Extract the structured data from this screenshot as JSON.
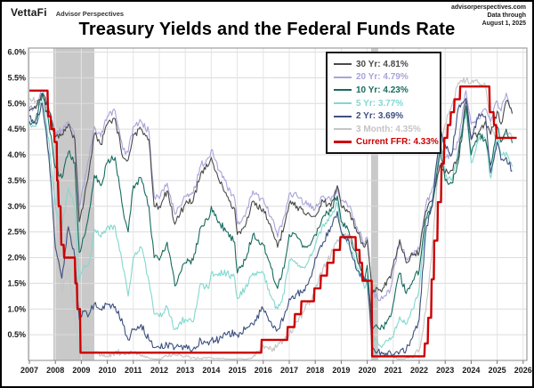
{
  "header": {
    "brand": "VettaFi",
    "brand_sub": "Advisor Perspectives",
    "credit_line1": "advisorperspectives.com",
    "credit_line2": "Data through",
    "credit_line3": "August 1, 2025"
  },
  "title": "Treasury Yields and the Federal Funds Rate",
  "chart_data": {
    "type": "line",
    "title": "Treasury Yields and the Federal Funds Rate",
    "xlabel": "",
    "ylabel": "",
    "x_range": [
      2007,
      2026
    ],
    "y_range": [
      0,
      6
    ],
    "grid": true,
    "legend_position": "top-right-inside",
    "y_ticks": [
      "0.5%",
      "1.0%",
      "1.5%",
      "2.0%",
      "2.5%",
      "3.0%",
      "3.5%",
      "4.0%",
      "4.5%",
      "5.0%",
      "5.5%",
      "6.0%"
    ],
    "x_ticks": [
      "2007",
      "2008",
      "2009",
      "2010",
      "2011",
      "2012",
      "2013",
      "2014",
      "2015",
      "2016",
      "2017",
      "2018",
      "2019",
      "2020",
      "2021",
      "2022",
      "2023",
      "2024",
      "2025",
      "2026"
    ],
    "recession_bands": [
      [
        2007.92,
        2009.5
      ],
      [
        2020.15,
        2020.42
      ]
    ],
    "colors": {
      "recession": "#c9c9c9",
      "grid": "#dcdcdc",
      "plot_border": "#9e9e9e",
      "background": "#ffffff",
      "frame": "#000000"
    },
    "x": [
      2007.0,
      2007.25,
      2007.5,
      2007.75,
      2008.0,
      2008.25,
      2008.5,
      2008.75,
      2008.92,
      2009.1,
      2009.3,
      2009.5,
      2009.75,
      2010.0,
      2010.3,
      2010.6,
      2010.8,
      2011.0,
      2011.3,
      2011.6,
      2011.8,
      2012.0,
      2012.3,
      2012.6,
      2012.8,
      2013.0,
      2013.3,
      2013.6,
      2013.9,
      2014.0,
      2014.3,
      2014.6,
      2014.9,
      2015.0,
      2015.3,
      2015.6,
      2015.9,
      2016.0,
      2016.3,
      2016.55,
      2016.8,
      2017.0,
      2017.3,
      2017.6,
      2017.9,
      2018.0,
      2018.3,
      2018.6,
      2018.85,
      2019.0,
      2019.3,
      2019.6,
      2019.9,
      2020.0,
      2020.2,
      2020.4,
      2020.6,
      2020.9,
      2021.0,
      2021.25,
      2021.5,
      2021.75,
      2022.0,
      2022.25,
      2022.5,
      2022.8,
      2023.0,
      2023.25,
      2023.5,
      2023.8,
      2024.0,
      2024.3,
      2024.55,
      2024.75,
      2025.0,
      2025.15,
      2025.35,
      2025.58
    ],
    "series": [
      {
        "name": "30 Yr",
        "current": "4.81%",
        "color": "#4a4a4a",
        "values": [
          4.85,
          4.9,
          5.2,
          4.85,
          4.35,
          4.4,
          4.6,
          4.3,
          2.7,
          3.1,
          3.7,
          4.4,
          4.2,
          4.6,
          4.7,
          3.95,
          3.9,
          4.4,
          4.5,
          4.3,
          3.0,
          3.0,
          3.3,
          2.65,
          2.85,
          3.05,
          3.1,
          3.65,
          3.8,
          3.95,
          3.5,
          3.2,
          2.95,
          2.45,
          2.6,
          3.1,
          2.95,
          2.95,
          2.6,
          2.2,
          2.6,
          3.05,
          3.0,
          2.85,
          2.8,
          2.8,
          3.1,
          3.0,
          3.4,
          3.0,
          2.9,
          2.5,
          2.2,
          2.35,
          1.3,
          1.4,
          1.4,
          1.6,
          1.85,
          2.35,
          1.9,
          2.05,
          2.1,
          2.9,
          3.1,
          3.8,
          3.65,
          3.7,
          3.95,
          5.05,
          4.3,
          4.45,
          4.65,
          4.4,
          4.85,
          4.6,
          5.05,
          4.81
        ]
      },
      {
        "name": "20 Yr",
        "current": "4.79%",
        "color": "#a8a4d8",
        "values": [
          4.9,
          4.95,
          5.25,
          4.9,
          4.45,
          4.5,
          4.65,
          4.35,
          3.0,
          3.4,
          3.95,
          4.55,
          4.35,
          4.75,
          4.85,
          4.1,
          4.05,
          4.55,
          4.65,
          4.45,
          3.2,
          3.15,
          3.45,
          2.85,
          3.0,
          3.2,
          3.25,
          3.8,
          3.95,
          4.1,
          3.7,
          3.4,
          3.15,
          2.65,
          2.8,
          3.3,
          3.15,
          3.15,
          2.8,
          2.4,
          2.8,
          3.25,
          3.2,
          3.05,
          3.0,
          2.95,
          3.2,
          3.1,
          3.35,
          3.1,
          3.0,
          2.6,
          2.25,
          2.4,
          1.35,
          1.2,
          1.2,
          1.4,
          1.7,
          2.3,
          2.0,
          2.1,
          2.15,
          3.0,
          3.35,
          4.1,
          3.95,
          4.0,
          4.25,
          5.25,
          4.6,
          4.7,
          4.9,
          4.65,
          5.05,
          4.85,
          5.2,
          4.79
        ]
      },
      {
        "name": "10 Yr",
        "current": "4.23%",
        "color": "#176b5d",
        "values": [
          4.65,
          4.7,
          5.2,
          4.6,
          3.75,
          3.55,
          4.05,
          3.85,
          2.1,
          2.4,
          2.9,
          3.6,
          3.4,
          3.85,
          3.95,
          2.95,
          2.5,
          3.4,
          3.55,
          3.0,
          2.0,
          1.95,
          2.3,
          1.45,
          1.7,
          1.9,
          1.95,
          2.6,
          2.75,
          3.0,
          2.7,
          2.5,
          2.3,
          1.7,
          1.95,
          2.45,
          2.25,
          2.25,
          1.8,
          1.4,
          1.8,
          2.45,
          2.4,
          2.2,
          2.35,
          2.45,
          2.8,
          2.9,
          3.2,
          2.7,
          2.5,
          2.0,
          1.55,
          1.85,
          0.6,
          0.65,
          0.65,
          0.85,
          1.1,
          1.7,
          1.3,
          1.55,
          1.75,
          2.75,
          3.0,
          4.1,
          3.5,
          3.45,
          3.85,
          4.95,
          4.0,
          4.4,
          4.3,
          3.8,
          4.55,
          4.25,
          4.5,
          4.23
        ]
      },
      {
        "name": "5 Yr",
        "current": "3.77%",
        "color": "#82d8d0",
        "values": [
          4.6,
          4.55,
          5.05,
          4.3,
          3.0,
          2.6,
          3.35,
          3.0,
          1.55,
          1.85,
          1.9,
          2.55,
          2.4,
          2.6,
          2.6,
          1.8,
          1.25,
          2.0,
          2.2,
          1.55,
          0.9,
          0.85,
          1.05,
          0.6,
          0.75,
          0.8,
          0.75,
          1.5,
          1.4,
          1.7,
          1.7,
          1.7,
          1.6,
          1.2,
          1.4,
          1.7,
          1.7,
          1.7,
          1.25,
          1.0,
          1.3,
          1.95,
          1.9,
          1.8,
          2.1,
          2.25,
          2.65,
          2.8,
          3.05,
          2.5,
          2.25,
          1.8,
          1.4,
          1.65,
          0.4,
          0.35,
          0.3,
          0.4,
          0.45,
          0.85,
          0.7,
          1.0,
          1.4,
          2.7,
          3.05,
          4.3,
          3.6,
          3.5,
          4.1,
          4.9,
          3.85,
          4.35,
          4.3,
          3.55,
          4.4,
          4.0,
          4.05,
          3.77
        ]
      },
      {
        "name": "2 Yr",
        "current": "3.69%",
        "color": "#3e5080",
        "values": [
          4.75,
          4.6,
          5.0,
          4.0,
          2.2,
          1.6,
          2.6,
          2.0,
          0.8,
          0.95,
          0.9,
          1.1,
          1.0,
          1.1,
          1.05,
          0.7,
          0.4,
          0.6,
          0.7,
          0.4,
          0.25,
          0.25,
          0.3,
          0.25,
          0.27,
          0.25,
          0.22,
          0.4,
          0.3,
          0.4,
          0.4,
          0.5,
          0.55,
          0.5,
          0.6,
          0.7,
          0.95,
          1.0,
          0.75,
          0.6,
          0.85,
          1.2,
          1.3,
          1.35,
          1.75,
          2.0,
          2.3,
          2.6,
          2.9,
          2.5,
          2.3,
          1.75,
          1.55,
          1.55,
          0.25,
          0.17,
          0.13,
          0.15,
          0.12,
          0.16,
          0.2,
          0.45,
          0.8,
          2.5,
          3.0,
          4.5,
          4.2,
          4.0,
          4.9,
          5.1,
          4.3,
          4.8,
          4.75,
          3.65,
          4.25,
          3.9,
          3.95,
          3.69
        ]
      },
      {
        "name": "3 Month",
        "current": "4.35%",
        "color": "#c4c4c4",
        "values": [
          5.1,
          5.05,
          4.95,
          3.9,
          3.1,
          1.35,
          1.8,
          0.9,
          0.05,
          0.25,
          0.15,
          0.18,
          0.1,
          0.08,
          0.15,
          0.15,
          0.13,
          0.14,
          0.08,
          0.05,
          0.02,
          0.03,
          0.08,
          0.1,
          0.1,
          0.08,
          0.06,
          0.04,
          0.06,
          0.05,
          0.03,
          0.03,
          0.02,
          0.03,
          0.02,
          0.07,
          0.2,
          0.3,
          0.23,
          0.28,
          0.4,
          0.5,
          0.75,
          1.0,
          1.25,
          1.4,
          1.8,
          2.05,
          2.35,
          2.4,
          2.4,
          2.1,
          1.55,
          1.55,
          0.1,
          0.14,
          0.11,
          0.08,
          0.07,
          0.02,
          0.05,
          0.05,
          0.2,
          0.95,
          2.2,
          4.1,
          4.6,
          4.95,
          5.4,
          5.45,
          5.4,
          5.4,
          5.35,
          4.6,
          4.3,
          4.3,
          4.4,
          4.35
        ]
      }
    ],
    "ffr": {
      "name": "Current FFR",
      "current": "4.33%",
      "color": "#cc0000",
      "points": [
        [
          2007.0,
          5.25
        ],
        [
          2007.7,
          5.25
        ],
        [
          2007.72,
          4.75
        ],
        [
          2007.82,
          4.75
        ],
        [
          2007.84,
          4.5
        ],
        [
          2007.95,
          4.5
        ],
        [
          2007.97,
          4.25
        ],
        [
          2008.05,
          4.25
        ],
        [
          2008.07,
          3.5
        ],
        [
          2008.1,
          3.5
        ],
        [
          2008.13,
          3.0
        ],
        [
          2008.2,
          3.0
        ],
        [
          2008.23,
          2.25
        ],
        [
          2008.32,
          2.25
        ],
        [
          2008.34,
          2.0
        ],
        [
          2008.75,
          2.0
        ],
        [
          2008.77,
          1.5
        ],
        [
          2008.83,
          1.5
        ],
        [
          2008.85,
          1.0
        ],
        [
          2008.95,
          1.0
        ],
        [
          2008.97,
          0.15
        ],
        [
          2015.92,
          0.15
        ],
        [
          2015.94,
          0.4
        ],
        [
          2016.92,
          0.4
        ],
        [
          2016.94,
          0.65
        ],
        [
          2017.2,
          0.65
        ],
        [
          2017.22,
          0.9
        ],
        [
          2017.45,
          0.9
        ],
        [
          2017.47,
          1.15
        ],
        [
          2017.95,
          1.15
        ],
        [
          2017.97,
          1.4
        ],
        [
          2018.2,
          1.4
        ],
        [
          2018.22,
          1.65
        ],
        [
          2018.45,
          1.65
        ],
        [
          2018.47,
          1.9
        ],
        [
          2018.7,
          1.9
        ],
        [
          2018.72,
          2.15
        ],
        [
          2018.95,
          2.15
        ],
        [
          2018.97,
          2.4
        ],
        [
          2019.55,
          2.4
        ],
        [
          2019.57,
          2.15
        ],
        [
          2019.7,
          2.15
        ],
        [
          2019.72,
          1.9
        ],
        [
          2019.8,
          1.9
        ],
        [
          2019.82,
          1.55
        ],
        [
          2020.17,
          1.55
        ],
        [
          2020.19,
          0.08
        ],
        [
          2022.2,
          0.08
        ],
        [
          2022.22,
          0.33
        ],
        [
          2022.33,
          0.33
        ],
        [
          2022.35,
          0.83
        ],
        [
          2022.46,
          0.83
        ],
        [
          2022.48,
          1.58
        ],
        [
          2022.56,
          1.58
        ],
        [
          2022.58,
          2.33
        ],
        [
          2022.7,
          2.33
        ],
        [
          2022.72,
          3.08
        ],
        [
          2022.84,
          3.08
        ],
        [
          2022.86,
          3.83
        ],
        [
          2022.95,
          3.83
        ],
        [
          2022.97,
          4.33
        ],
        [
          2023.08,
          4.33
        ],
        [
          2023.1,
          4.58
        ],
        [
          2023.2,
          4.58
        ],
        [
          2023.22,
          4.83
        ],
        [
          2023.34,
          4.83
        ],
        [
          2023.36,
          5.08
        ],
        [
          2023.56,
          5.08
        ],
        [
          2023.58,
          5.33
        ],
        [
          2024.7,
          5.33
        ],
        [
          2024.72,
          4.83
        ],
        [
          2024.86,
          4.83
        ],
        [
          2024.88,
          4.58
        ],
        [
          2024.96,
          4.58
        ],
        [
          2024.98,
          4.33
        ],
        [
          2025.75,
          4.33
        ]
      ]
    }
  }
}
